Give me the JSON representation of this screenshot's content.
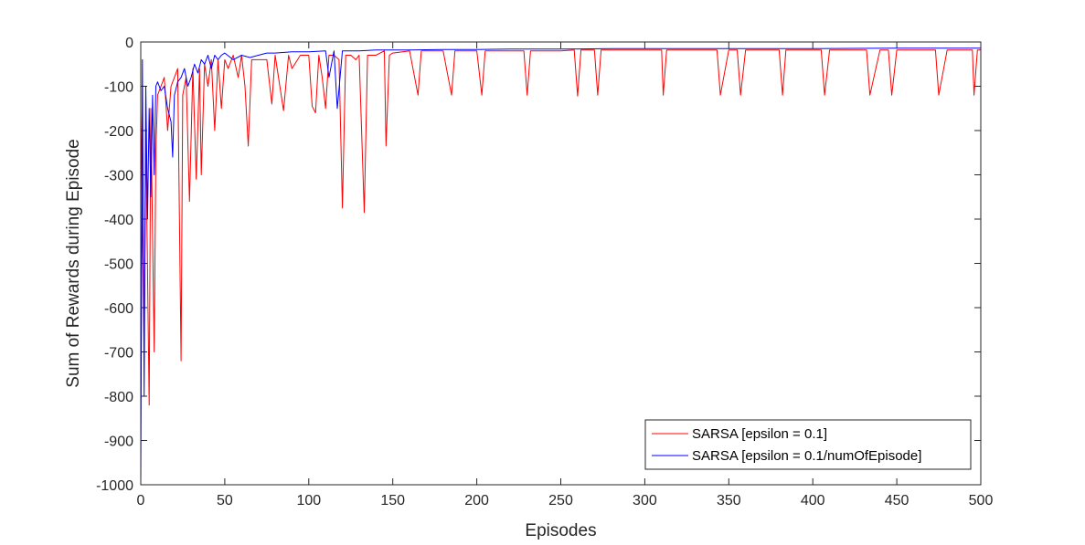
{
  "chart_data": {
    "type": "line",
    "title": "",
    "xlabel": "Episodes",
    "ylabel": "Sum of Rewards during Episode",
    "xlim": [
      0,
      500
    ],
    "ylim": [
      -1000,
      0
    ],
    "x_ticks": [
      "0",
      "50",
      "100",
      "150",
      "200",
      "250",
      "300",
      "350",
      "400",
      "450",
      "500"
    ],
    "y_ticks": [
      "0",
      "-100",
      "-200",
      "-300",
      "-400",
      "-500",
      "-600",
      "-700",
      "-800",
      "-900",
      "-1000"
    ],
    "grid": false,
    "legend_position": "bottom-right",
    "series": [
      {
        "name": "SARSA [epsilon = 0.1]",
        "color": "#ff0000",
        "x": [
          0,
          2,
          3,
          5,
          6,
          8,
          9,
          10,
          12,
          14,
          16,
          18,
          20,
          22,
          24,
          25,
          27,
          29,
          31,
          33,
          35,
          36,
          38,
          40,
          42,
          44,
          46,
          48,
          50,
          52,
          55,
          58,
          60,
          62,
          64,
          66,
          70,
          75,
          78,
          80,
          85,
          88,
          90,
          95,
          100,
          102,
          104,
          106,
          108,
          110,
          112,
          115,
          118,
          120,
          122,
          125,
          128,
          130,
          133,
          135,
          138,
          140,
          145,
          146,
          148,
          150,
          160,
          165,
          167,
          170,
          180,
          185,
          187,
          190,
          200,
          203,
          205,
          207,
          210,
          220,
          228,
          230,
          232,
          235,
          240,
          250,
          258,
          260,
          262,
          265,
          270,
          272,
          274,
          280,
          300,
          310,
          311,
          313,
          320,
          340,
          343,
          345,
          350,
          355,
          357,
          360,
          380,
          382,
          384,
          390,
          400,
          405,
          407,
          410,
          430,
          432,
          434,
          440,
          443,
          445,
          447,
          450,
          470,
          473,
          475,
          480,
          490,
          495,
          496,
          498,
          500
        ],
        "y": [
          -150,
          -700,
          -200,
          -820,
          -150,
          -700,
          -250,
          -120,
          -100,
          -80,
          -200,
          -100,
          -80,
          -60,
          -720,
          -120,
          -80,
          -360,
          -60,
          -310,
          -60,
          -300,
          -50,
          -100,
          -40,
          -200,
          -40,
          -150,
          -40,
          -60,
          -30,
          -80,
          -30,
          -100,
          -235,
          -40,
          -40,
          -40,
          -140,
          -30,
          -155,
          -30,
          -60,
          -30,
          -30,
          -145,
          -160,
          -30,
          -80,
          -150,
          -30,
          -30,
          -40,
          -375,
          -30,
          -30,
          -40,
          -30,
          -385,
          -30,
          -30,
          -30,
          -20,
          -235,
          -30,
          -25,
          -20,
          -120,
          -20,
          -20,
          -20,
          -120,
          -20,
          -20,
          -20,
          -120,
          -20,
          -20,
          -20,
          -20,
          -20,
          -120,
          -20,
          -20,
          -20,
          -20,
          -18,
          -122,
          -18,
          -18,
          -18,
          -120,
          -18,
          -18,
          -18,
          -18,
          -120,
          -18,
          -18,
          -18,
          -18,
          -120,
          -18,
          -18,
          -120,
          -18,
          -18,
          -120,
          -18,
          -18,
          -18,
          -18,
          -120,
          -18,
          -18,
          -18,
          -120,
          -18,
          -18,
          -18,
          -120,
          -18,
          -18,
          -18,
          -120,
          -18,
          -18,
          -18,
          -120,
          -18,
          -18
        ]
      },
      {
        "name": "SARSA [epsilon = 0.1/numOfEpisode]",
        "color": "#0000ff",
        "x": [
          0,
          1,
          2,
          3,
          4,
          5,
          6,
          7,
          8,
          9,
          10,
          12,
          14,
          16,
          18,
          19,
          20,
          22,
          24,
          26,
          28,
          30,
          32,
          34,
          36,
          38,
          40,
          42,
          44,
          46,
          48,
          50,
          55,
          60,
          65,
          70,
          75,
          80,
          90,
          100,
          110,
          112,
          115,
          117,
          120,
          130,
          140,
          150,
          160,
          180,
          200,
          220,
          250,
          280,
          300,
          350,
          400,
          450,
          500
        ],
        "y": [
          -1000,
          -40,
          -800,
          -100,
          -400,
          -150,
          -350,
          -120,
          -300,
          -100,
          -90,
          -110,
          -100,
          -150,
          -180,
          -260,
          -120,
          -90,
          -80,
          -60,
          -100,
          -80,
          -50,
          -70,
          -40,
          -50,
          -30,
          -60,
          -30,
          -40,
          -30,
          -25,
          -40,
          -30,
          -35,
          -30,
          -25,
          -25,
          -22,
          -22,
          -20,
          -80,
          -20,
          -150,
          -20,
          -20,
          -18,
          -18,
          -18,
          -17,
          -17,
          -16,
          -16,
          -15,
          -15,
          -15,
          -15,
          -14,
          -14
        ]
      }
    ]
  }
}
